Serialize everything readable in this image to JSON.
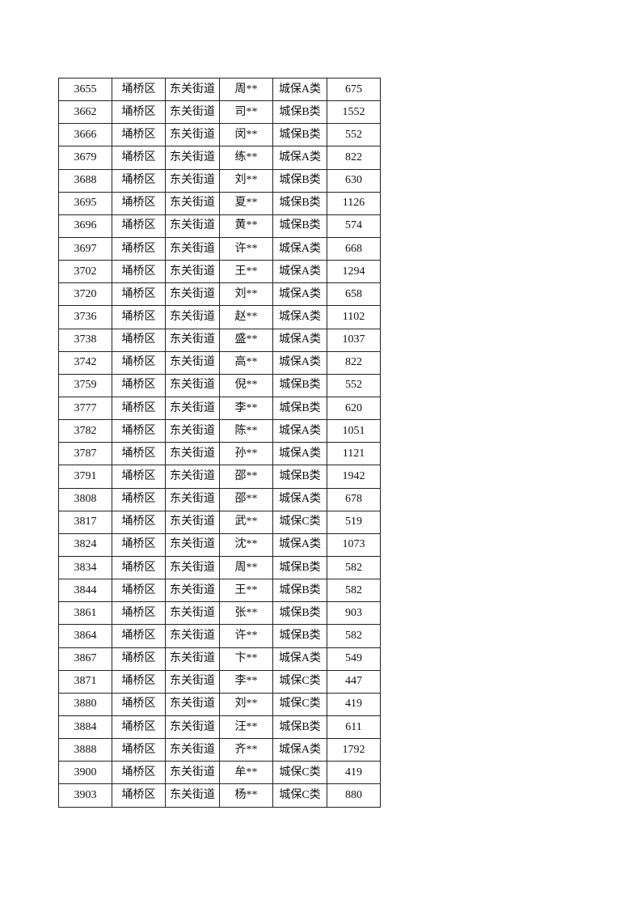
{
  "table": {
    "rows": [
      [
        "3655",
        "埇桥区",
        "东关街道",
        "周**",
        "城保A类",
        "675"
      ],
      [
        "3662",
        "埇桥区",
        "东关街道",
        "司**",
        "城保B类",
        "1552"
      ],
      [
        "3666",
        "埇桥区",
        "东关街道",
        "闵**",
        "城保B类",
        "552"
      ],
      [
        "3679",
        "埇桥区",
        "东关街道",
        "练**",
        "城保A类",
        "822"
      ],
      [
        "3688",
        "埇桥区",
        "东关街道",
        "刘**",
        "城保B类",
        "630"
      ],
      [
        "3695",
        "埇桥区",
        "东关街道",
        "夏**",
        "城保B类",
        "1126"
      ],
      [
        "3696",
        "埇桥区",
        "东关街道",
        "黄**",
        "城保B类",
        "574"
      ],
      [
        "3697",
        "埇桥区",
        "东关街道",
        "许**",
        "城保A类",
        "668"
      ],
      [
        "3702",
        "埇桥区",
        "东关街道",
        "王**",
        "城保A类",
        "1294"
      ],
      [
        "3720",
        "埇桥区",
        "东关街道",
        "刘**",
        "城保A类",
        "658"
      ],
      [
        "3736",
        "埇桥区",
        "东关街道",
        "赵**",
        "城保A类",
        "1102"
      ],
      [
        "3738",
        "埇桥区",
        "东关街道",
        "盛**",
        "城保A类",
        "1037"
      ],
      [
        "3742",
        "埇桥区",
        "东关街道",
        "高**",
        "城保A类",
        "822"
      ],
      [
        "3759",
        "埇桥区",
        "东关街道",
        "倪**",
        "城保B类",
        "552"
      ],
      [
        "3777",
        "埇桥区",
        "东关街道",
        "李**",
        "城保B类",
        "620"
      ],
      [
        "3782",
        "埇桥区",
        "东关街道",
        "陈**",
        "城保A类",
        "1051"
      ],
      [
        "3787",
        "埇桥区",
        "东关街道",
        "孙**",
        "城保A类",
        "1121"
      ],
      [
        "3791",
        "埇桥区",
        "东关街道",
        "邵**",
        "城保B类",
        "1942"
      ],
      [
        "3808",
        "埇桥区",
        "东关街道",
        "邵**",
        "城保A类",
        "678"
      ],
      [
        "3817",
        "埇桥区",
        "东关街道",
        "武**",
        "城保C类",
        "519"
      ],
      [
        "3824",
        "埇桥区",
        "东关街道",
        "沈**",
        "城保A类",
        "1073"
      ],
      [
        "3834",
        "埇桥区",
        "东关街道",
        "周**",
        "城保B类",
        "582"
      ],
      [
        "3844",
        "埇桥区",
        "东关街道",
        "王**",
        "城保B类",
        "582"
      ],
      [
        "3861",
        "埇桥区",
        "东关街道",
        "张**",
        "城保B类",
        "903"
      ],
      [
        "3864",
        "埇桥区",
        "东关街道",
        "许**",
        "城保B类",
        "582"
      ],
      [
        "3867",
        "埇桥区",
        "东关街道",
        "卞**",
        "城保A类",
        "549"
      ],
      [
        "3871",
        "埇桥区",
        "东关街道",
        "李**",
        "城保C类",
        "447"
      ],
      [
        "3880",
        "埇桥区",
        "东关街道",
        "刘**",
        "城保C类",
        "419"
      ],
      [
        "3884",
        "埇桥区",
        "东关街道",
        "汪**",
        "城保B类",
        "611"
      ],
      [
        "3888",
        "埇桥区",
        "东关街道",
        "齐**",
        "城保A类",
        "1792"
      ],
      [
        "3900",
        "埇桥区",
        "东关街道",
        "牟**",
        "城保C类",
        "419"
      ],
      [
        "3903",
        "埇桥区",
        "东关街道",
        "杨**",
        "城保C类",
        "880"
      ]
    ]
  }
}
